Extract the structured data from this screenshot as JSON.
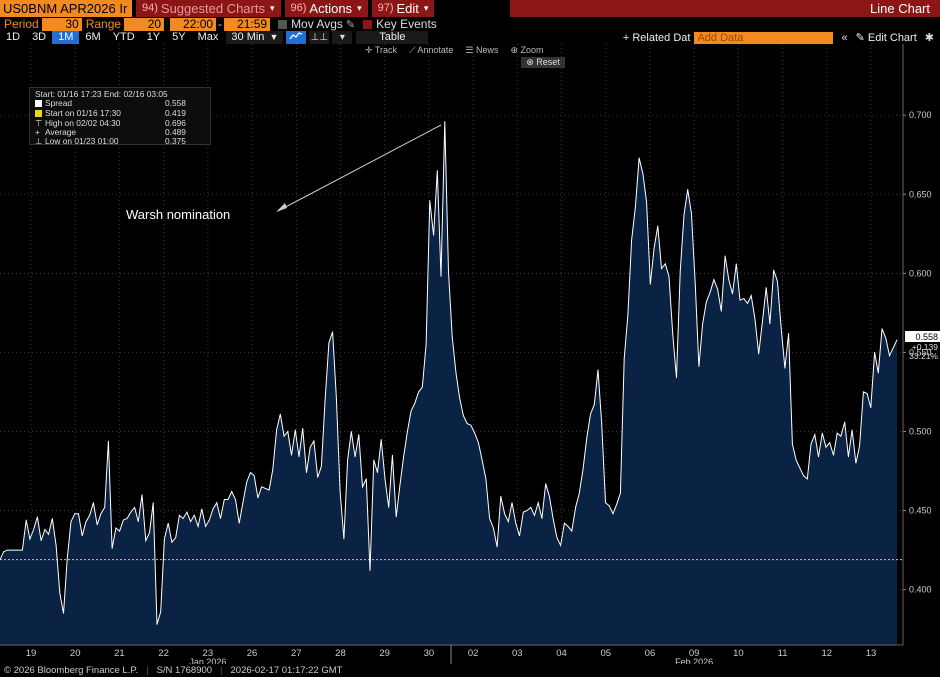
{
  "header": {
    "ticker": "US0BNM APR2026 Ir",
    "suggested_num": "94)",
    "suggested_label": "Suggested Charts",
    "actions_num": "96)",
    "actions_label": "Actions",
    "edit_num": "97)",
    "edit_label": "Edit",
    "title": "Line Chart"
  },
  "settings": {
    "period_label": "Period",
    "period_value": "30",
    "range_label": "Range",
    "range_value": "20",
    "time_start": "22:00",
    "time_end": "21:59",
    "mov_avgs": "Mov Avgs",
    "key_events": "Key Events"
  },
  "toolbar": {
    "periods": [
      "1D",
      "3D",
      "1M",
      "6M",
      "YTD",
      "1Y",
      "5Y",
      "Max"
    ],
    "active_period": "1M",
    "interval": "30 Min",
    "table": "Table",
    "related_label": "Related Dat",
    "add_data_placeholder": "Add Data",
    "edit_chart": "Edit Chart"
  },
  "tools": {
    "track": "Track",
    "annotate": "Annotate",
    "news": "News",
    "zoom": "Zoom",
    "reset": "Reset"
  },
  "legend": {
    "header": "Start: 01/16 17:23 End: 02/16 03:05",
    "rows": [
      {
        "label": "Spread",
        "value": "0.558"
      },
      {
        "label": "Start on 01/16 17:30",
        "value": "0.419"
      },
      {
        "label": "High on 02/02 04:30",
        "value": "0.696"
      },
      {
        "label": "Average",
        "value": "0.489"
      },
      {
        "label": "Low on 01/23 01:00",
        "value": "0.375"
      }
    ]
  },
  "annotation": "Warsh nomination",
  "last_value": {
    "value": "0.558",
    "change": "+0.139",
    "pct": "33.21%"
  },
  "footer": {
    "copyright": "© 2026 Bloomberg Finance L.P.",
    "sn": "S/N 1768900",
    "timestamp": "2026-02-17 01:17:22 GMT"
  },
  "colors": {
    "line": "#ffffff",
    "fill": "#0a2345",
    "reference": "#f2d21e",
    "accent": "#f28a1f",
    "menu": "#8c1616",
    "active": "#1f6fd6"
  },
  "chart_data": {
    "type": "area",
    "ylim": [
      0.365,
      0.745
    ],
    "yticks": [
      0.4,
      0.45,
      0.5,
      0.55,
      0.6,
      0.65,
      0.7
    ],
    "ytick_labels": [
      "0.400",
      "0.450",
      "0.500",
      "0.550",
      "0.600",
      "0.650",
      "0.700"
    ],
    "reference_value": 0.419,
    "x_ticks": [
      "19",
      "20",
      "21",
      "22",
      "23",
      "26",
      "27",
      "28",
      "29",
      "30",
      "02",
      "03",
      "04",
      "05",
      "06",
      "09",
      "10",
      "11",
      "12",
      "13"
    ],
    "x_month_labels": [
      {
        "label": "Jan 2026",
        "tick": "23"
      },
      {
        "label": "Feb 2026",
        "tick": "09"
      }
    ],
    "series": [
      {
        "values": [
          0.419,
          0.424,
          0.425,
          0.425,
          0.425,
          0.425,
          0.425,
          0.444,
          0.432,
          0.438,
          0.446,
          0.431,
          0.438,
          0.435,
          0.445,
          0.428,
          0.398,
          0.385,
          0.42,
          0.443,
          0.448,
          0.448,
          0.434,
          0.443,
          0.447,
          0.455,
          0.441,
          0.448,
          0.452,
          0.494,
          0.426,
          0.439,
          0.437,
          0.444,
          0.445,
          0.449,
          0.452,
          0.443,
          0.46,
          0.431,
          0.436,
          0.455,
          0.378,
          0.386,
          0.432,
          0.442,
          0.43,
          0.433,
          0.447,
          0.445,
          0.449,
          0.443,
          0.447,
          0.44,
          0.451,
          0.44,
          0.444,
          0.451,
          0.455,
          0.445,
          0.457,
          0.457,
          0.462,
          0.457,
          0.442,
          0.455,
          0.468,
          0.474,
          0.472,
          0.458,
          0.465,
          0.464,
          0.463,
          0.476,
          0.501,
          0.511,
          0.497,
          0.5,
          0.485,
          0.501,
          0.484,
          0.502,
          0.474,
          0.49,
          0.494,
          0.471,
          0.478,
          0.521,
          0.556,
          0.563,
          0.521,
          0.462,
          0.432,
          0.482,
          0.5,
          0.484,
          0.498,
          0.465,
          0.47,
          0.412,
          0.482,
          0.474,
          0.495,
          0.47,
          0.452,
          0.485,
          0.446,
          0.466,
          0.484,
          0.5,
          0.513,
          0.518,
          0.525,
          0.528,
          0.555,
          0.646,
          0.624,
          0.665,
          0.598,
          0.696,
          0.601,
          0.56,
          0.537,
          0.521,
          0.51,
          0.505,
          0.504,
          0.499,
          0.493,
          0.482,
          0.47,
          0.445,
          0.439,
          0.427,
          0.459,
          0.448,
          0.443,
          0.455,
          0.442,
          0.434,
          0.449,
          0.45,
          0.452,
          0.447,
          0.455,
          0.445,
          0.467,
          0.459,
          0.445,
          0.433,
          0.428,
          0.442,
          0.44,
          0.437,
          0.452,
          0.461,
          0.476,
          0.496,
          0.511,
          0.517,
          0.539,
          0.505,
          0.455,
          0.453,
          0.448,
          0.454,
          0.461,
          0.546,
          0.574,
          0.621,
          0.642,
          0.673,
          0.663,
          0.645,
          0.593,
          0.616,
          0.63,
          0.603,
          0.606,
          0.598,
          0.561,
          0.534,
          0.601,
          0.637,
          0.653,
          0.638,
          0.594,
          0.541,
          0.568,
          0.582,
          0.588,
          0.596,
          0.59,
          0.576,
          0.611,
          0.596,
          0.587,
          0.606,
          0.583,
          0.584,
          0.581,
          0.586,
          0.571,
          0.549,
          0.57,
          0.591,
          0.568,
          0.602,
          0.595,
          0.566,
          0.54,
          0.562,
          0.492,
          0.482,
          0.477,
          0.472,
          0.47,
          0.492,
          0.498,
          0.484,
          0.499,
          0.49,
          0.493,
          0.485,
          0.499,
          0.497,
          0.506,
          0.484,
          0.501,
          0.48,
          0.491,
          0.525,
          0.524,
          0.515,
          0.55,
          0.537,
          0.565,
          0.559,
          0.548,
          0.553,
          0.558
        ]
      }
    ]
  }
}
